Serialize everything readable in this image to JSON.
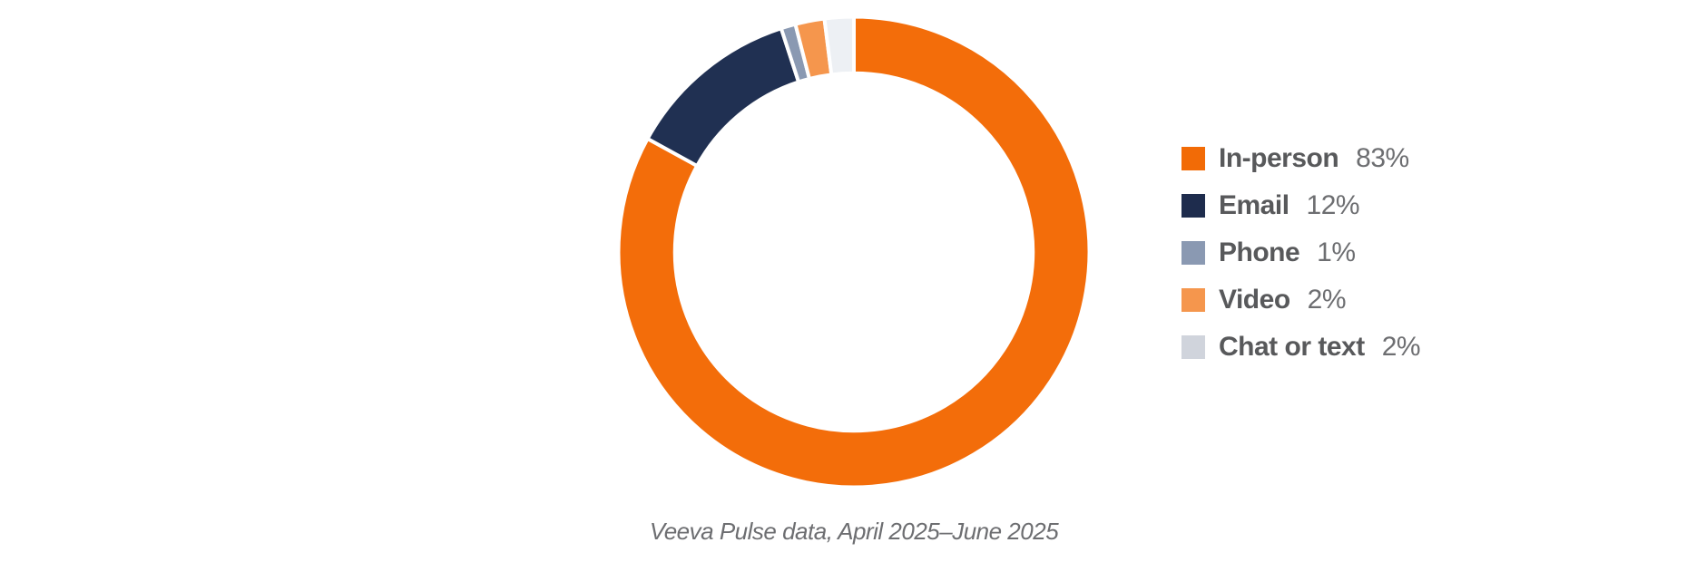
{
  "chart_data": {
    "type": "pie",
    "donut": true,
    "title": "",
    "start_angle_deg": 0,
    "direction": "clockwise",
    "inner_radius_ratio": 0.76,
    "gap_color": "#FFFFFF",
    "legend_position": "right",
    "slices": [
      {
        "label": "In-person",
        "value": 83,
        "percent_label": "83%",
        "color": "#F36D0A",
        "legend_color": "#F26B06"
      },
      {
        "label": "Email",
        "value": 12,
        "percent_label": "12%",
        "color": "#203052",
        "legend_color": "#1E2C4D"
      },
      {
        "label": "Phone",
        "value": 1,
        "percent_label": "1%",
        "color": "#8A99B2",
        "legend_color": "#8A99B2"
      },
      {
        "label": "Video",
        "value": 2,
        "percent_label": "2%",
        "color": "#F5964D",
        "legend_color": "#F5964D"
      },
      {
        "label": "Chat or text",
        "value": 2,
        "percent_label": "2%",
        "color": "#EDF0F4",
        "legend_color": "#D0D4DC"
      }
    ],
    "caption": "Veeva Pulse data, April 2025–June 2025"
  },
  "colors": {
    "legend_label_text": "#58595B",
    "legend_value_text": "#6D6E71",
    "caption_text": "#6D6E71",
    "background": "#FFFFFF"
  }
}
